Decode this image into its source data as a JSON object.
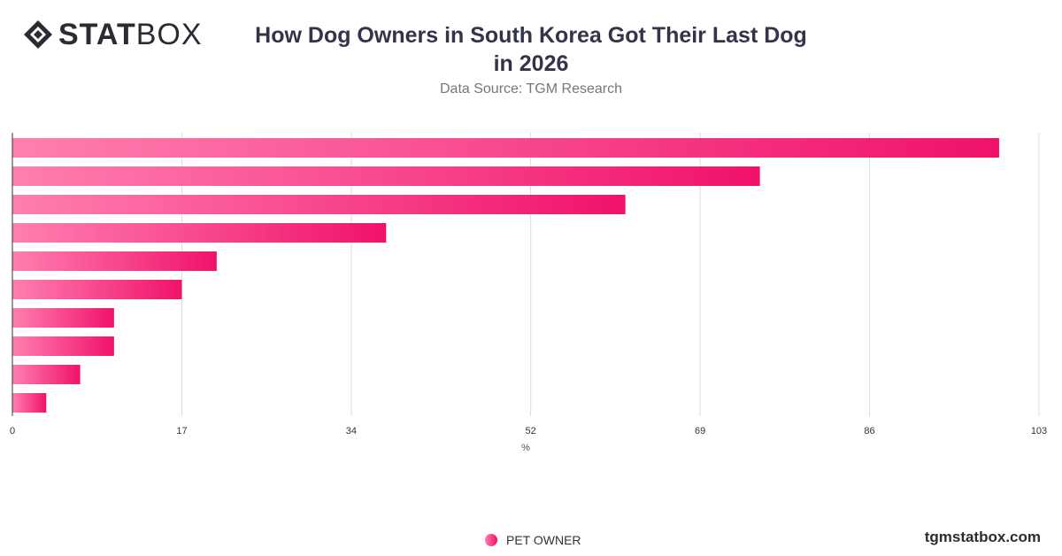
{
  "brand": {
    "logo_bold": "STAT",
    "logo_light": "BOX",
    "site": "tgmstatbox.com"
  },
  "title": "How Dog Owners in South Korea Got Their Last Dog in 2026",
  "subtitle": "Data Source: TGM Research",
  "legend": {
    "label": "PET OWNER"
  },
  "colors": {
    "bar_start": "#ff7fb0",
    "bar_end": "#f0126a",
    "grid": "#dddddd",
    "axis": "#333333"
  },
  "chart_data": {
    "type": "bar",
    "orientation": "horizontal",
    "series": [
      {
        "name": "PET OWNER",
        "values": [
          99,
          75,
          61.5,
          37.5,
          20.5,
          17,
          10.2,
          10.2,
          6.8,
          3.4
        ]
      }
    ],
    "xlabel": "%",
    "xlim": [
      0,
      103
    ],
    "xticks": [
      "0",
      "17",
      "34",
      "52",
      "69",
      "86",
      "103"
    ],
    "grid": true,
    "legend_position": "bottom"
  }
}
